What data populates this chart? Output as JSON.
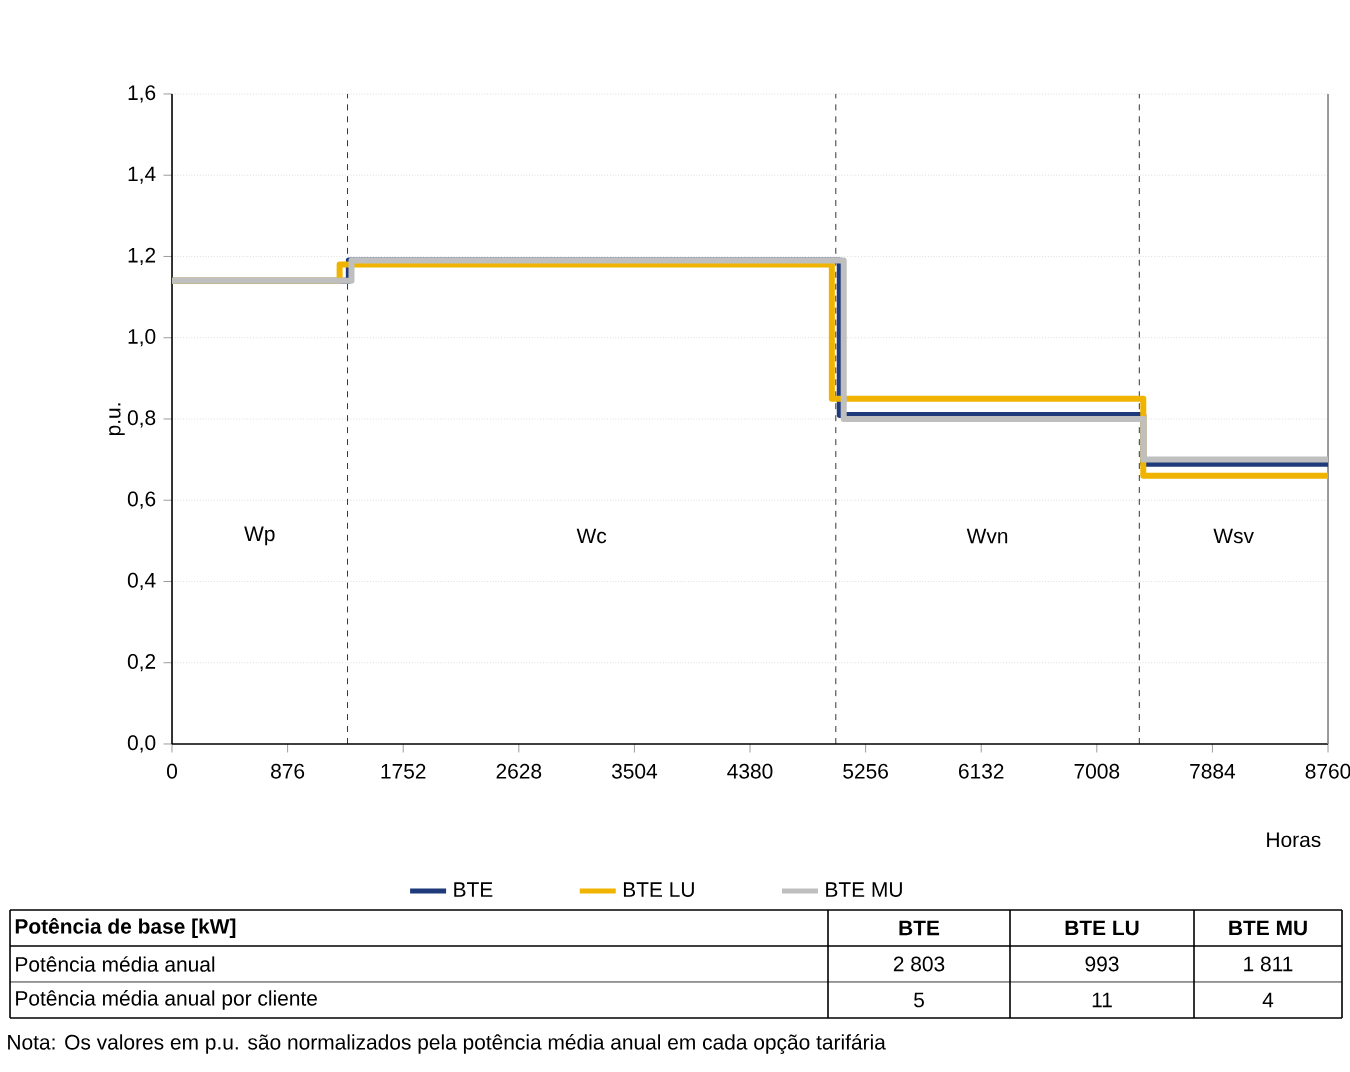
{
  "chart_data": {
    "type": "step",
    "xlabel": "Horas",
    "ylabel": "p.u.",
    "xlim": [
      0,
      8760
    ],
    "xticks": [
      0,
      876,
      1752,
      2628,
      3504,
      4380,
      5256,
      6132,
      7008,
      7884,
      8760
    ],
    "ylim": [
      0,
      1.6
    ],
    "yticks": [
      {
        "value": 0,
        "label": "0,0"
      },
      {
        "value": 0.2,
        "label": "0,2"
      },
      {
        "value": 0.4,
        "label": "0,4"
      },
      {
        "value": 0.6,
        "label": "0,6"
      },
      {
        "value": 0.8,
        "label": "0,8"
      },
      {
        "value": 1.0,
        "label": "1,0"
      },
      {
        "value": 1.2,
        "label": "1,2"
      },
      {
        "value": 1.4,
        "label": "1,4"
      },
      {
        "value": 1.6,
        "label": "1,6"
      }
    ],
    "grid": "y",
    "legend": "bottom",
    "marker": "none",
    "line_style": "solid",
    "series": [
      {
        "name": "BTE",
        "color": "#1f3a7a",
        "x": [
          0,
          1340,
          5060,
          7360,
          8760
        ],
        "values": [
          1.14,
          1.19,
          0.81,
          0.69,
          0.69
        ]
      },
      {
        "name": "BTE LU",
        "color": "#f0b400",
        "x": [
          0,
          1270,
          5000,
          7360,
          8760
        ],
        "values": [
          1.14,
          1.18,
          0.85,
          0.66,
          0.66
        ]
      },
      {
        "name": "BTE MU",
        "color": "#bfbfbf",
        "x": [
          0,
          1360,
          5090,
          7360,
          8760
        ],
        "values": [
          1.14,
          1.19,
          0.8,
          0.7,
          0.7
        ]
      }
    ],
    "ref_lines": [
      {
        "axis": "x",
        "value": 1330,
        "line_style": "dashed",
        "color": "#000000"
      },
      {
        "axis": "x",
        "value": 5030,
        "line_style": "dashed",
        "color": "#000000"
      },
      {
        "axis": "x",
        "value": 7330,
        "line_style": "dashed",
        "color": "#000000"
      }
    ],
    "annotations": [
      "Wp",
      "Wc",
      "Wvn",
      "Wsv",
      "Potência de base [kW]",
      "BTE",
      "BTE LU",
      "BTE MU",
      "Potência média anual",
      "2 803",
      "993",
      "1 811",
      "Potência média anual por cliente",
      "5",
      "11",
      "4",
      "Nota: Os valores em p.u. são normalizados pela potência média anual em cada opção tarifária"
    ]
  }
}
